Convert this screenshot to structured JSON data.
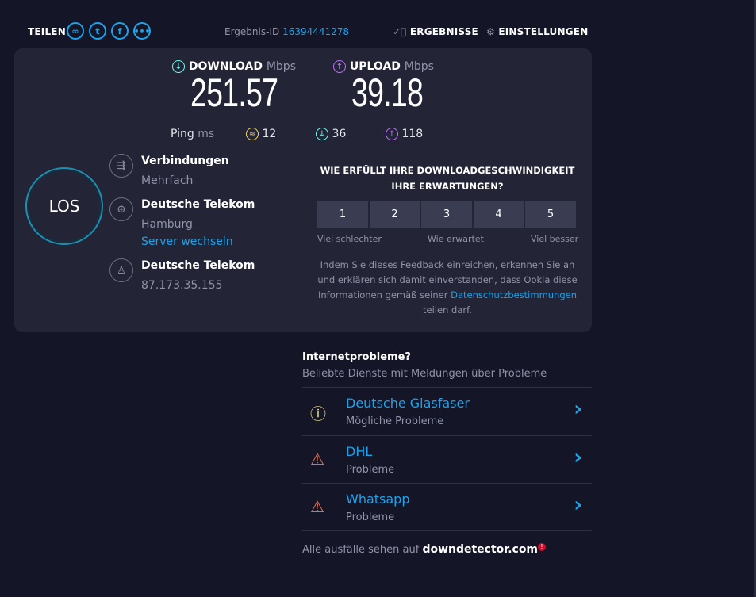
{
  "header": {
    "share_label": "TEILEN",
    "share_icons": [
      "link-icon",
      "twitter-icon",
      "facebook-icon",
      "more-icon"
    ],
    "result_id_label": "Ergebnis-ID",
    "result_id": "16394441278",
    "results_label": "ERGEBNISSE",
    "settings_label": "EINSTELLUNGEN"
  },
  "speed": {
    "download_label": "DOWNLOAD",
    "upload_label": "UPLOAD",
    "unit": "Mbps",
    "download": "251.57",
    "upload": "39.18",
    "ping_label": "Ping",
    "ping_unit": "ms",
    "ping_idle": "12",
    "ping_down": "36",
    "ping_up": "118"
  },
  "go_label": "LOS",
  "info": {
    "connections_label": "Verbindungen",
    "connections_value": "Mehrfach",
    "server_name": "Deutsche Telekom",
    "server_location": "Hamburg",
    "change_server": "Server wechseln",
    "provider_name": "Deutsche Telekom",
    "ip": "87.173.35.155"
  },
  "survey": {
    "question": "WIE ERFÜLLT IHRE DOWNLOADGESCHWINDIGKEIT IHRE ERWARTUNGEN?",
    "options": [
      "1",
      "2",
      "3",
      "4",
      "5"
    ],
    "low": "Viel schlechter",
    "mid": "Wie erwartet",
    "high": "Viel besser",
    "disclaimer": "Indem Sie dieses Feedback einreichen, erkennen Sie an und erklären sich damit einverstanden, dass Ookla diese Informationen gemäß seiner",
    "privacy_link": "Datenschutzbestimmungen",
    "disclaimer_end": "teilen darf."
  },
  "problems": {
    "title": "Internetprobleme?",
    "subtitle": "Beliebte Dienste mit Meldungen über Probleme",
    "items": [
      {
        "name": "Deutsche Glasfaser",
        "status": "Mögliche Probleme",
        "icon": "info-icon",
        "color": "#f3e08a"
      },
      {
        "name": "DHL",
        "status": "Probleme",
        "icon": "warning-icon",
        "color": "#f0795a"
      },
      {
        "name": "Whatsapp",
        "status": "Probleme",
        "icon": "warning-icon",
        "color": "#f0795a"
      }
    ],
    "footer": "Alle ausfälle sehen auf",
    "footer_link": "downdetector.com"
  },
  "colors": {
    "accent": "#1ba3ec",
    "download": "#6afff3",
    "upload": "#bf71ff",
    "ping": "#fbd65a"
  }
}
